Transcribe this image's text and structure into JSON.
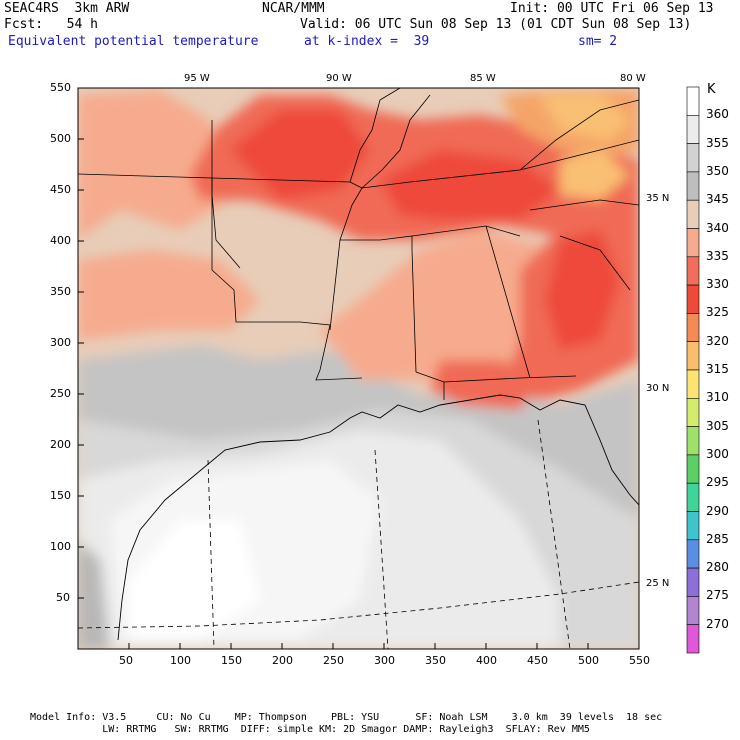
{
  "header": {
    "line1_left": "SEAC4RS  3km ARW",
    "line1_mid": "NCAR/MMM",
    "line1_right": "Init: 00 UTC Fri 06 Sep 13",
    "line2_left": "Fcst:   54 h",
    "line2_right": "Valid: 06 UTC Sun 08 Sep 13 (01 CDT Sun 08 Sep 13)",
    "line3_left": "Equivalent potential temperature",
    "line3_mid": "at k-index =  39",
    "line3_right": "sm= 2"
  },
  "map": {
    "x_ticks": [
      "50",
      "100",
      "150",
      "200",
      "250",
      "300",
      "350",
      "400",
      "450",
      "500",
      "550"
    ],
    "y_ticks": [
      "550",
      "500",
      "450",
      "400",
      "350",
      "300",
      "250",
      "200",
      "150",
      "100",
      "50"
    ],
    "lon_labels": [
      "95 W",
      "90 W",
      "85 W",
      "80 W"
    ],
    "lat_labels": [
      "35 N",
      "30 N",
      "25 N"
    ]
  },
  "legend": {
    "unit": "K",
    "levels": [
      "360",
      "355",
      "350",
      "345",
      "340",
      "335",
      "330",
      "325",
      "320",
      "315",
      "310",
      "305",
      "300",
      "295",
      "290",
      "285",
      "280",
      "275",
      "270"
    ],
    "colors": [
      "#ffffff",
      "#ececec",
      "#d2d2d2",
      "#bebebe",
      "#e8cdb8",
      "#f6ab8e",
      "#f26e5c",
      "#ee4a3a",
      "#f48a55",
      "#f9bd6c",
      "#fbe474",
      "#d4ec6e",
      "#9ee06a",
      "#5ccf66",
      "#40d39a",
      "#3fc3cc",
      "#5a8ee0",
      "#8c6fd8",
      "#b384d0",
      "#df58d8"
    ]
  },
  "footer": {
    "line1": "Model Info: V3.5     CU: No Cu    MP: Thompson    PBL: YSU      SF: Noah LSM    3.0 km  39 levels  18 sec",
    "line2": "            LW: RRTMG   SW: RRTMG  DIFF: simple KM: 2D Smagor DAMP: Rayleigh3  SFLAY: Rev MM5"
  }
}
